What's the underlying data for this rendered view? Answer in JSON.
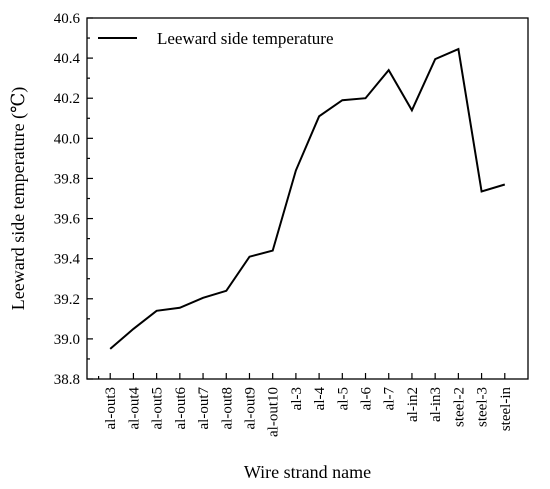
{
  "chart_data": {
    "type": "line",
    "xlabel": "Wire strand name",
    "ylabel": "Leeward side temperature (℃)",
    "categories": [
      "al-out3",
      "al-out4",
      "al-out5",
      "al-out6",
      "al-out7",
      "al-out8",
      "al-out9",
      "al-out10",
      "al-3",
      "al-4",
      "al-5",
      "al-6",
      "al-7",
      "al-in2",
      "al-in3",
      "steel-2",
      "steel-3",
      "steel-in"
    ],
    "series": [
      {
        "name": "Leeward side temperature",
        "values": [
          38.95,
          39.05,
          39.14,
          39.155,
          39.205,
          39.24,
          39.41,
          39.44,
          39.84,
          40.11,
          40.19,
          40.2,
          40.34,
          40.14,
          40.395,
          40.445,
          39.735,
          39.77
        ]
      }
    ],
    "yticks": [
      "38.8",
      "39.0",
      "39.2",
      "39.4",
      "39.6",
      "39.8",
      "40.0",
      "40.2",
      "40.4",
      "40.6"
    ],
    "ylim": [
      38.8,
      40.6
    ],
    "grid": false,
    "legend_position": "top-left",
    "line_color": "#000000"
  }
}
